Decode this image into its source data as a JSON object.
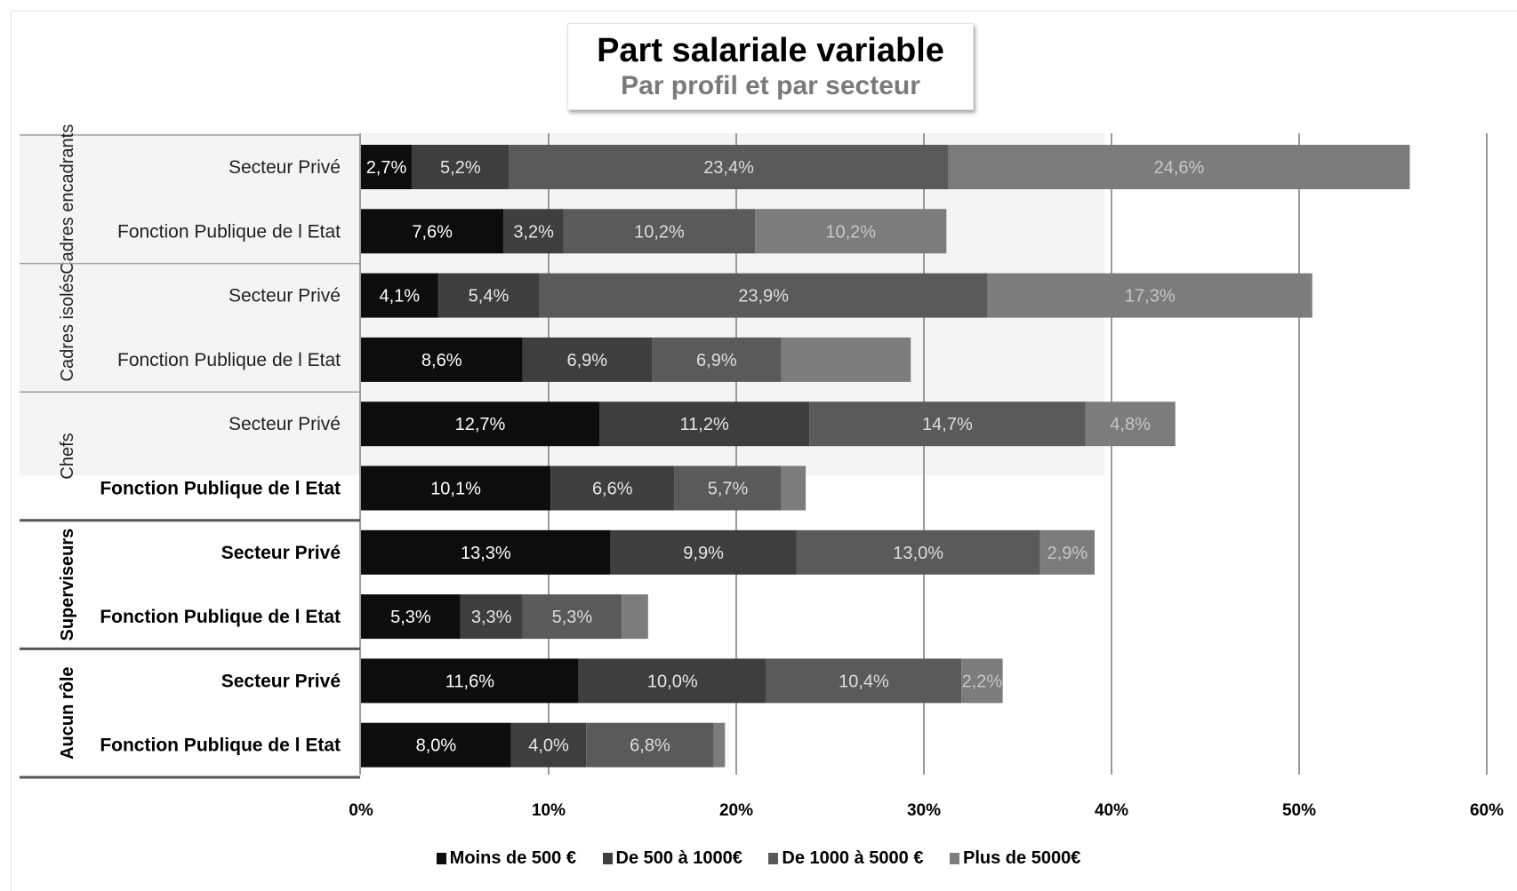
{
  "chart_data": {
    "type": "bar",
    "orientation": "horizontal",
    "stacked": true,
    "title": "Part salariale variable",
    "subtitle": "Par profil et par secteur",
    "xlim": [
      0,
      60
    ],
    "x_ticks": [
      "0%",
      "10%",
      "20%",
      "30%",
      "40%",
      "50%",
      "60%"
    ],
    "grid": true,
    "legend_position": "bottom",
    "groups": [
      {
        "label": "Cadres encadrants",
        "bold": false,
        "rows": [
          0,
          1
        ]
      },
      {
        "label": "Cadres isolés",
        "bold": false,
        "rows": [
          2,
          3
        ]
      },
      {
        "label": "Chefs",
        "bold": false,
        "rows": [
          4,
          5
        ]
      },
      {
        "label": "Superviseurs",
        "bold": true,
        "rows": [
          6,
          7
        ]
      },
      {
        "label": "Aucun rôle",
        "bold": true,
        "rows": [
          8,
          9
        ]
      }
    ],
    "categories": [
      "Secteur Privé",
      "Fonction Publique de l Etat",
      "Secteur Privé",
      "Fonction Publique de l Etat",
      "Secteur Privé",
      "Fonction Publique de l Etat",
      "Secteur Privé",
      "Fonction Publique de l Etat",
      "Secteur Privé",
      "Fonction Publique de l Etat"
    ],
    "category_bold": [
      false,
      false,
      false,
      false,
      false,
      true,
      true,
      true,
      true,
      true
    ],
    "series": [
      {
        "name": "Moins de 500 €",
        "color": "#0d0d0d",
        "label_color": "#ffffff",
        "values": [
          2.7,
          7.6,
          4.1,
          8.6,
          12.7,
          10.1,
          13.3,
          5.3,
          11.6,
          8.0
        ],
        "labels": [
          "2,7%",
          "7,6%",
          "4,1%",
          "8,6%",
          "12,7%",
          "10,1%",
          "13,3%",
          "5,3%",
          "11,6%",
          "8,0%"
        ]
      },
      {
        "name": "De 500 à 1000€",
        "color": "#3e3e3e",
        "label_color": "#e6e6e6",
        "values": [
          5.2,
          3.2,
          5.4,
          6.9,
          11.2,
          6.6,
          9.9,
          3.3,
          10.0,
          4.0
        ],
        "labels": [
          "5,2%",
          "3,2%",
          "5,4%",
          "6,9%",
          "11,2%",
          "6,6%",
          "9,9%",
          "3,3%",
          "10,0%",
          "4,0%"
        ]
      },
      {
        "name": "De 1000 à 5000 €",
        "color": "#5a5a5a",
        "label_color": "#dddddd",
        "values": [
          23.4,
          10.2,
          23.9,
          6.9,
          14.7,
          5.7,
          13.0,
          5.3,
          10.4,
          6.8
        ],
        "labels": [
          "23,4%",
          "10,2%",
          "23,9%",
          "6,9%",
          "14,7%",
          "5,7%",
          "13,0%",
          "5,3%",
          "10,4%",
          "6,8%"
        ]
      },
      {
        "name": "Plus de 5000€",
        "color": "#7c7c7c",
        "label_color": "#c6c6c6",
        "values": [
          24.6,
          10.2,
          17.3,
          6.9,
          4.8,
          1.3,
          2.9,
          1.4,
          2.2,
          0.6
        ],
        "labels": [
          "24,6%",
          "10,2%",
          "17,3%",
          "",
          "4,8%",
          "",
          "2,9%",
          "",
          "2,2%",
          ""
        ]
      }
    ]
  }
}
